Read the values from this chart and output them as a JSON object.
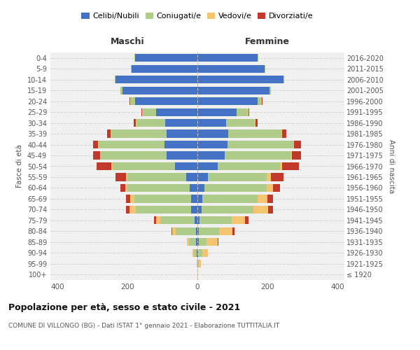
{
  "age_groups": [
    "100+",
    "95-99",
    "90-94",
    "85-89",
    "80-84",
    "75-79",
    "70-74",
    "65-69",
    "60-64",
    "55-59",
    "50-54",
    "45-49",
    "40-44",
    "35-39",
    "30-34",
    "25-29",
    "20-24",
    "15-19",
    "10-14",
    "5-9",
    "0-4"
  ],
  "birth_years": [
    "≤ 1920",
    "1921-1925",
    "1926-1930",
    "1931-1935",
    "1936-1940",
    "1941-1945",
    "1946-1950",
    "1951-1955",
    "1956-1960",
    "1961-1965",
    "1966-1970",
    "1971-1975",
    "1976-1980",
    "1981-1985",
    "1986-1990",
    "1991-1995",
    "1996-2000",
    "2001-2005",
    "2006-2010",
    "2011-2015",
    "2016-2020"
  ],
  "males": {
    "celibi": [
      1,
      1,
      3,
      4,
      5,
      8,
      18,
      18,
      22,
      32,
      65,
      88,
      95,
      88,
      92,
      118,
      178,
      215,
      235,
      188,
      178
    ],
    "coniugati": [
      0,
      2,
      8,
      20,
      58,
      98,
      158,
      162,
      178,
      168,
      178,
      188,
      188,
      158,
      82,
      38,
      12,
      5,
      2,
      2,
      2
    ],
    "vedovi": [
      0,
      0,
      3,
      6,
      10,
      12,
      18,
      12,
      6,
      4,
      3,
      2,
      2,
      2,
      2,
      2,
      2,
      0,
      0,
      0,
      0
    ],
    "divorziati": [
      0,
      0,
      0,
      0,
      2,
      6,
      10,
      12,
      15,
      30,
      42,
      20,
      14,
      10,
      6,
      2,
      2,
      0,
      0,
      0,
      0
    ]
  },
  "females": {
    "nubili": [
      0,
      0,
      2,
      3,
      4,
      6,
      12,
      14,
      20,
      30,
      58,
      78,
      85,
      88,
      82,
      112,
      172,
      205,
      245,
      192,
      172
    ],
    "coniugate": [
      0,
      3,
      12,
      22,
      58,
      92,
      148,
      158,
      178,
      168,
      178,
      188,
      188,
      152,
      82,
      32,
      12,
      5,
      2,
      2,
      2
    ],
    "vedove": [
      2,
      6,
      16,
      32,
      38,
      38,
      42,
      28,
      18,
      12,
      6,
      4,
      2,
      2,
      2,
      2,
      0,
      0,
      0,
      0,
      0
    ],
    "divorziate": [
      0,
      0,
      0,
      2,
      6,
      10,
      14,
      16,
      20,
      35,
      48,
      25,
      20,
      12,
      6,
      2,
      2,
      0,
      0,
      0,
      0
    ]
  },
  "colors": {
    "celibi_nubili": "#4472C4",
    "coniugati": "#AECB8A",
    "vedovi": "#F5C470",
    "divorziati": "#C0392B"
  },
  "title": "Popolazione per età, sesso e stato civile - 2021",
  "subtitle": "COMUNE DI VILLONGO (BG) - Dati ISTAT 1° gennaio 2021 - Elaborazione TUTTITALIA.IT",
  "xlabel_maschi": "Maschi",
  "xlabel_femmine": "Femmine",
  "ylabel_left": "Fasce di età",
  "ylabel_right": "Anni di nascita",
  "xlim": 420,
  "legend_labels": [
    "Celibi/Nubili",
    "Coniugati/e",
    "Vedovi/e",
    "Divorziati/e"
  ],
  "background_color": "#ffffff",
  "plot_bg": "#f0f0f0"
}
